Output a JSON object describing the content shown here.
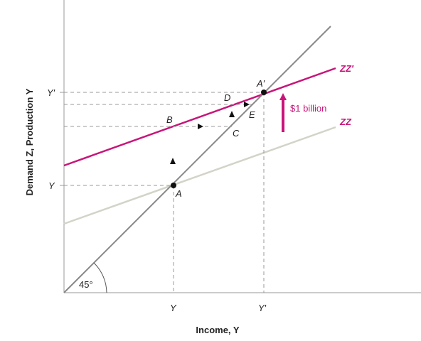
{
  "axes": {
    "x_title": "Income, Y",
    "y_title": "Demand Z, Production Y",
    "x_tick_y": "Y",
    "x_tick_yprime": "Y′",
    "y_tick_y": "Y",
    "y_tick_yprime": "Y′"
  },
  "lines": {
    "forty_five_label": "45°",
    "zz_label": "ZZ",
    "zzprime_label": "ZZ′",
    "zz_color": "#d3d3c8",
    "zzprime_color": "#c8157a",
    "forty_five_color": "#888888"
  },
  "points": {
    "A": "A",
    "A_prime": "A′",
    "B": "B",
    "C": "C",
    "D": "D",
    "E": "E"
  },
  "shift": {
    "label": "$1 billion",
    "color": "#c8157a"
  }
}
